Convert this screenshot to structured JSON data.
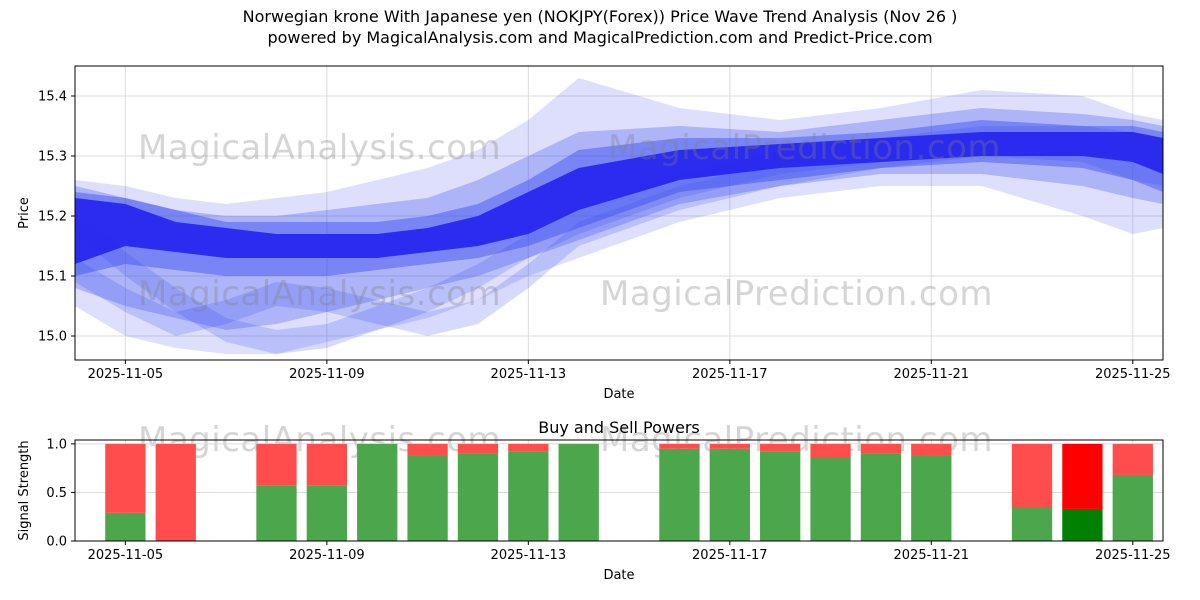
{
  "title": {
    "line1": "Norwegian krone With Japanese yen (NOKJPY(Forex)) Price Wave Trend Analysis (Nov 26 )",
    "line2": "powered by MagicalAnalysis.com and MagicalPrediction.com and Predict-Price.com"
  },
  "watermarks": {
    "analysis": "MagicalAnalysis.com",
    "prediction": "MagicalPrediction.com"
  },
  "colors": {
    "grid": "#dcdcdc",
    "spine": "#000000",
    "text": "#000000",
    "band_core": "#2626ee",
    "band_light": "#3344ee",
    "buy_green": "#4ca64c",
    "sell_red": "#ff4c4c",
    "buy_green_strong": "#008000",
    "sell_red_strong": "#ff0000"
  },
  "chart_data": [
    {
      "type": "area",
      "title": "",
      "xlabel": "Date",
      "ylabel": "Price",
      "ylim": [
        14.96,
        15.45
      ],
      "xlim_days": [
        0,
        21.6
      ],
      "yticks": [
        {
          "v": 15.0,
          "label": "15.0"
        },
        {
          "v": 15.1,
          "label": "15.1"
        },
        {
          "v": 15.2,
          "label": "15.2"
        },
        {
          "v": 15.3,
          "label": "15.3"
        },
        {
          "v": 15.4,
          "label": "15.4"
        }
      ],
      "xticks": [
        {
          "day": 1,
          "label": "2025-11-05"
        },
        {
          "day": 5,
          "label": "2025-11-09"
        },
        {
          "day": 9,
          "label": "2025-11-13"
        },
        {
          "day": 13,
          "label": "2025-11-17"
        },
        {
          "day": 17,
          "label": "2025-11-21"
        },
        {
          "day": 21,
          "label": "2025-11-25"
        }
      ],
      "x_days": [
        0,
        1,
        2,
        3,
        4,
        5,
        6,
        7,
        8,
        9,
        10,
        12,
        14,
        16,
        18,
        20,
        21,
        21.6
      ],
      "bands": [
        {
          "name": "outer-envelope",
          "opacity": 0.17,
          "lower": [
            15.05,
            15.0,
            14.98,
            14.97,
            14.97,
            14.99,
            15.01,
            15.03,
            15.06,
            15.1,
            15.13,
            15.19,
            15.23,
            15.25,
            15.25,
            15.2,
            15.17,
            15.18
          ],
          "upper": [
            15.26,
            15.25,
            15.23,
            15.22,
            15.23,
            15.24,
            15.26,
            15.28,
            15.31,
            15.36,
            15.43,
            15.38,
            15.36,
            15.38,
            15.41,
            15.4,
            15.37,
            15.36
          ]
        },
        {
          "name": "mid-envelope",
          "opacity": 0.28,
          "lower": [
            15.08,
            15.05,
            15.03,
            15.01,
            15.02,
            15.04,
            15.06,
            15.08,
            15.1,
            15.13,
            15.16,
            15.22,
            15.25,
            15.27,
            15.27,
            15.25,
            15.23,
            15.22
          ],
          "upper": [
            15.25,
            15.23,
            15.21,
            15.2,
            15.2,
            15.21,
            15.22,
            15.23,
            15.26,
            15.3,
            15.34,
            15.35,
            15.34,
            15.36,
            15.38,
            15.37,
            15.36,
            15.35
          ]
        },
        {
          "name": "ribbon-a",
          "opacity": 0.2,
          "lower": [
            15.17,
            15.1,
            15.04,
            14.99,
            14.97,
            14.98,
            15.01,
            15.04,
            15.08,
            15.13,
            15.17,
            15.23,
            15.27,
            15.29,
            15.31,
            15.31,
            15.3,
            15.29
          ],
          "upper": [
            15.21,
            15.14,
            15.08,
            15.03,
            15.01,
            15.02,
            15.05,
            15.08,
            15.12,
            15.17,
            15.21,
            15.27,
            15.31,
            15.33,
            15.35,
            15.35,
            15.34,
            15.33
          ]
        },
        {
          "name": "ribbon-b",
          "opacity": 0.2,
          "lower": [
            15.09,
            15.04,
            15.0,
            15.02,
            15.05,
            15.04,
            15.02,
            15.0,
            15.02,
            15.08,
            15.15,
            15.21,
            15.25,
            15.28,
            15.3,
            15.29,
            15.26,
            15.25
          ],
          "upper": [
            15.13,
            15.08,
            15.04,
            15.06,
            15.09,
            15.08,
            15.06,
            15.04,
            15.06,
            15.12,
            15.19,
            15.25,
            15.29,
            15.32,
            15.34,
            15.33,
            15.3,
            15.29
          ]
        },
        {
          "name": "inner-envelope",
          "opacity": 0.42,
          "lower": [
            15.1,
            15.12,
            15.11,
            15.1,
            15.1,
            15.1,
            15.11,
            15.12,
            15.13,
            15.15,
            15.18,
            15.24,
            15.26,
            15.28,
            15.29,
            15.28,
            15.26,
            15.24
          ],
          "upper": [
            15.24,
            15.23,
            15.21,
            15.19,
            15.19,
            15.19,
            15.19,
            15.2,
            15.22,
            15.26,
            15.31,
            15.33,
            15.33,
            15.34,
            15.36,
            15.35,
            15.35,
            15.34
          ]
        },
        {
          "name": "core-band",
          "opacity": 0.93,
          "core": true,
          "lower": [
            15.12,
            15.15,
            15.14,
            15.13,
            15.13,
            15.13,
            15.13,
            15.14,
            15.15,
            15.17,
            15.21,
            15.26,
            15.28,
            15.29,
            15.3,
            15.3,
            15.29,
            15.27
          ],
          "upper": [
            15.23,
            15.22,
            15.19,
            15.18,
            15.17,
            15.17,
            15.17,
            15.18,
            15.2,
            15.24,
            15.28,
            15.31,
            15.32,
            15.33,
            15.34,
            15.34,
            15.34,
            15.33
          ]
        }
      ]
    },
    {
      "type": "bar",
      "title": "Buy and Sell Powers",
      "xlabel": "Date",
      "ylabel": "Signal Strength",
      "ylim": [
        0,
        1.04
      ],
      "xlim_days": [
        0,
        21.6
      ],
      "bar_width_days": 0.8,
      "yticks": [
        {
          "v": 0.0,
          "label": "0.0"
        },
        {
          "v": 0.5,
          "label": "0.5"
        },
        {
          "v": 1.0,
          "label": "1.0"
        }
      ],
      "xticks": [
        {
          "day": 1,
          "label": "2025-11-05"
        },
        {
          "day": 5,
          "label": "2025-11-09"
        },
        {
          "day": 9,
          "label": "2025-11-13"
        },
        {
          "day": 13,
          "label": "2025-11-17"
        },
        {
          "day": 17,
          "label": "2025-11-21"
        },
        {
          "day": 21,
          "label": "2025-11-25"
        }
      ],
      "bars": [
        {
          "day": 1,
          "date": "2025-11-05",
          "buy": 0.29,
          "sell": 0.71
        },
        {
          "day": 2,
          "date": "2025-11-06",
          "buy": 0.0,
          "sell": 1.0
        },
        {
          "day": 4,
          "date": "2025-11-08",
          "buy": 0.57,
          "sell": 0.43
        },
        {
          "day": 5,
          "date": "2025-11-09",
          "buy": 0.57,
          "sell": 0.43
        },
        {
          "day": 6,
          "date": "2025-11-10",
          "buy": 1.0,
          "sell": 0.0
        },
        {
          "day": 7,
          "date": "2025-11-11",
          "buy": 0.88,
          "sell": 0.12
        },
        {
          "day": 8,
          "date": "2025-11-12",
          "buy": 0.9,
          "sell": 0.1
        },
        {
          "day": 9,
          "date": "2025-11-13",
          "buy": 0.92,
          "sell": 0.08
        },
        {
          "day": 10,
          "date": "2025-11-14",
          "buy": 1.0,
          "sell": 0.0
        },
        {
          "day": 12,
          "date": "2025-11-16",
          "buy": 0.95,
          "sell": 0.05
        },
        {
          "day": 13,
          "date": "2025-11-17",
          "buy": 0.95,
          "sell": 0.05
        },
        {
          "day": 14,
          "date": "2025-11-18",
          "buy": 0.92,
          "sell": 0.08
        },
        {
          "day": 15,
          "date": "2025-11-19",
          "buy": 0.86,
          "sell": 0.14
        },
        {
          "day": 16,
          "date": "2025-11-20",
          "buy": 0.9,
          "sell": 0.1
        },
        {
          "day": 17,
          "date": "2025-11-21",
          "buy": 0.88,
          "sell": 0.12
        },
        {
          "day": 19,
          "date": "2025-11-23",
          "buy": 0.35,
          "sell": 0.65
        },
        {
          "day": 20,
          "date": "2025-11-24",
          "buy": 0.33,
          "sell": 0.67,
          "strong": true
        },
        {
          "day": 21,
          "date": "2025-11-25",
          "buy": 0.68,
          "sell": 0.32
        }
      ]
    }
  ]
}
